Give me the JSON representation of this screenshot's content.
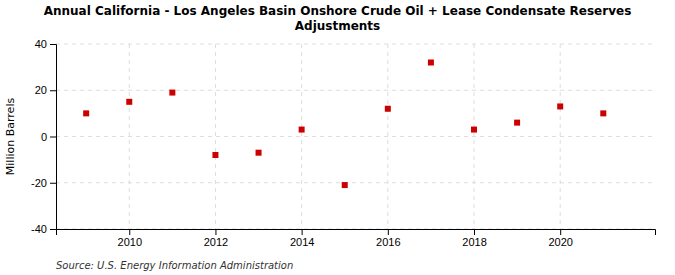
{
  "chart_data": {
    "type": "scatter",
    "title": "Annual California - Los Angeles Basin Onshore Crude Oil + Lease Condensate Reserves\nAdjustments",
    "y_label": "Million Barrels",
    "source": "Source: U.S. Energy Information Administration",
    "x": [
      2009,
      2010,
      2011,
      2012,
      2013,
      2014,
      2015,
      2016,
      2017,
      2018,
      2019,
      2020,
      2021
    ],
    "values": [
      10,
      15,
      19,
      -8,
      -7,
      3,
      -21,
      12,
      32,
      3,
      6,
      13,
      10
    ],
    "color": "#cc0000",
    "marker": "square",
    "xlim": [
      2008.3,
      2022.2
    ],
    "xticks": [
      2010,
      2012,
      2014,
      2016,
      2018,
      2020
    ],
    "ylim": [
      -40,
      40
    ],
    "yticks": [
      -40,
      -20,
      0,
      20,
      40
    ],
    "grid": true
  }
}
